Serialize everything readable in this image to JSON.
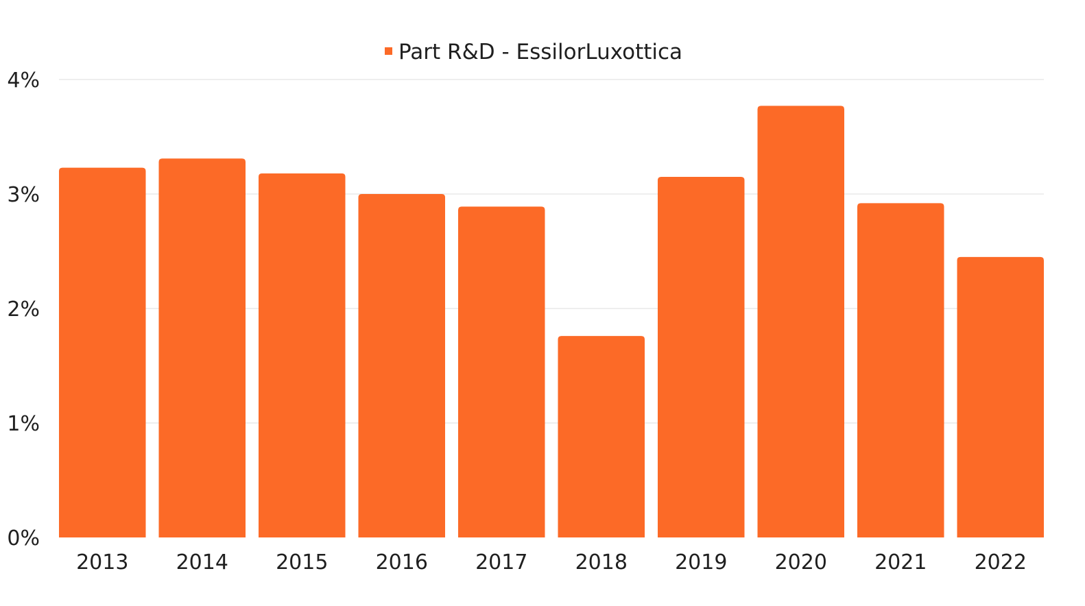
{
  "chart_data": {
    "type": "bar",
    "categories": [
      "2013",
      "2014",
      "2015",
      "2016",
      "2017",
      "2018",
      "2019",
      "2020",
      "2021",
      "2022"
    ],
    "series": [
      {
        "name": "Part R&D - EssilorLuxottica",
        "values": [
          3.23,
          3.31,
          3.18,
          3.0,
          2.89,
          1.76,
          3.15,
          3.77,
          2.92,
          2.45
        ],
        "color": "#fc6a27"
      }
    ],
    "ylim": [
      0,
      4
    ],
    "yticks": [
      "0%",
      "1%",
      "2%",
      "3%",
      "4%"
    ],
    "grid": true,
    "legend_position": "top-center",
    "title": "",
    "xlabel": "",
    "ylabel": ""
  }
}
